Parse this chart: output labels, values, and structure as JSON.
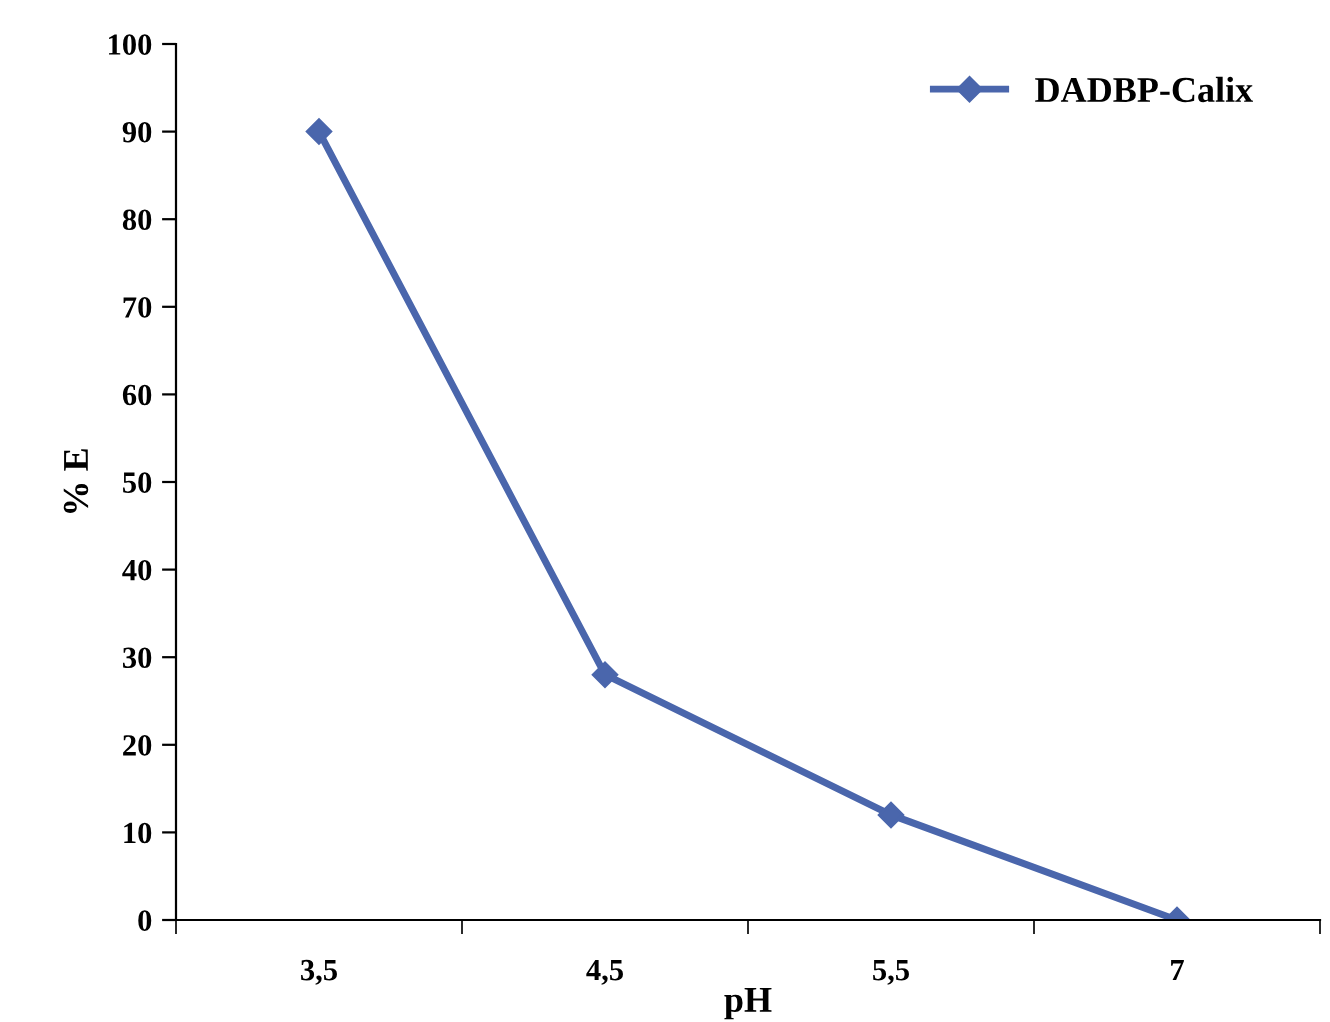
{
  "chart_data": {
    "type": "line",
    "xlabel": "pH",
    "ylabel": "% E",
    "categories": [
      "3,5",
      "4,5",
      "5,5",
      "7"
    ],
    "series": [
      {
        "name": "DADBP-Calix",
        "color": "#4a66ac",
        "values": [
          90,
          28,
          12,
          0
        ]
      }
    ],
    "ylim": [
      0,
      100
    ],
    "yticks": [
      0,
      10,
      20,
      30,
      40,
      50,
      60,
      70,
      80,
      90,
      100
    ],
    "grid": false,
    "legend": "top right",
    "marker": "diamond",
    "line_style": "solid"
  }
}
